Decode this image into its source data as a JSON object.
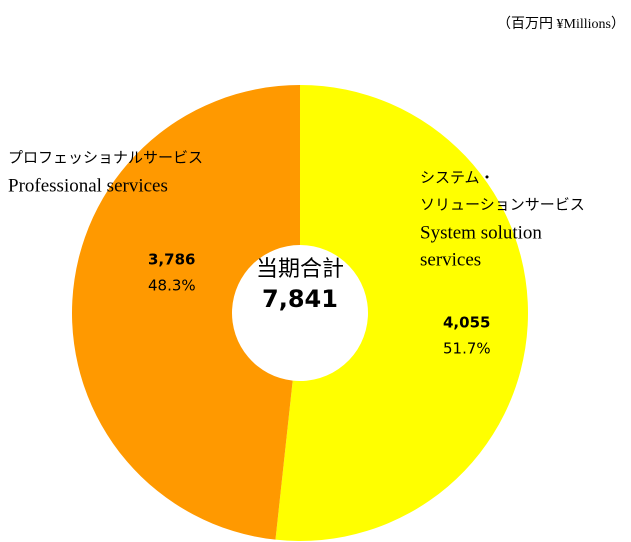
{
  "chart_data": {
    "type": "donut",
    "unit_label": "（百万円 ¥Millions）",
    "center_title": "当期合計",
    "total": 7841,
    "total_label": "7,841",
    "labels_ja": [
      [
        "システム・",
        "ソリューションサービス"
      ],
      [
        "プロフェッショナルサービス"
      ]
    ],
    "labels_en": [
      [
        "System solution",
        "services"
      ],
      [
        "Professional services"
      ]
    ],
    "values": [
      4055,
      3786
    ],
    "value_labels": [
      "4,055",
      "3,786"
    ],
    "percents": [
      51.7,
      48.3
    ],
    "percent_labels": [
      "51.7%",
      "48.3%"
    ],
    "colors": [
      "#ffff00",
      "#ff9900"
    ]
  }
}
